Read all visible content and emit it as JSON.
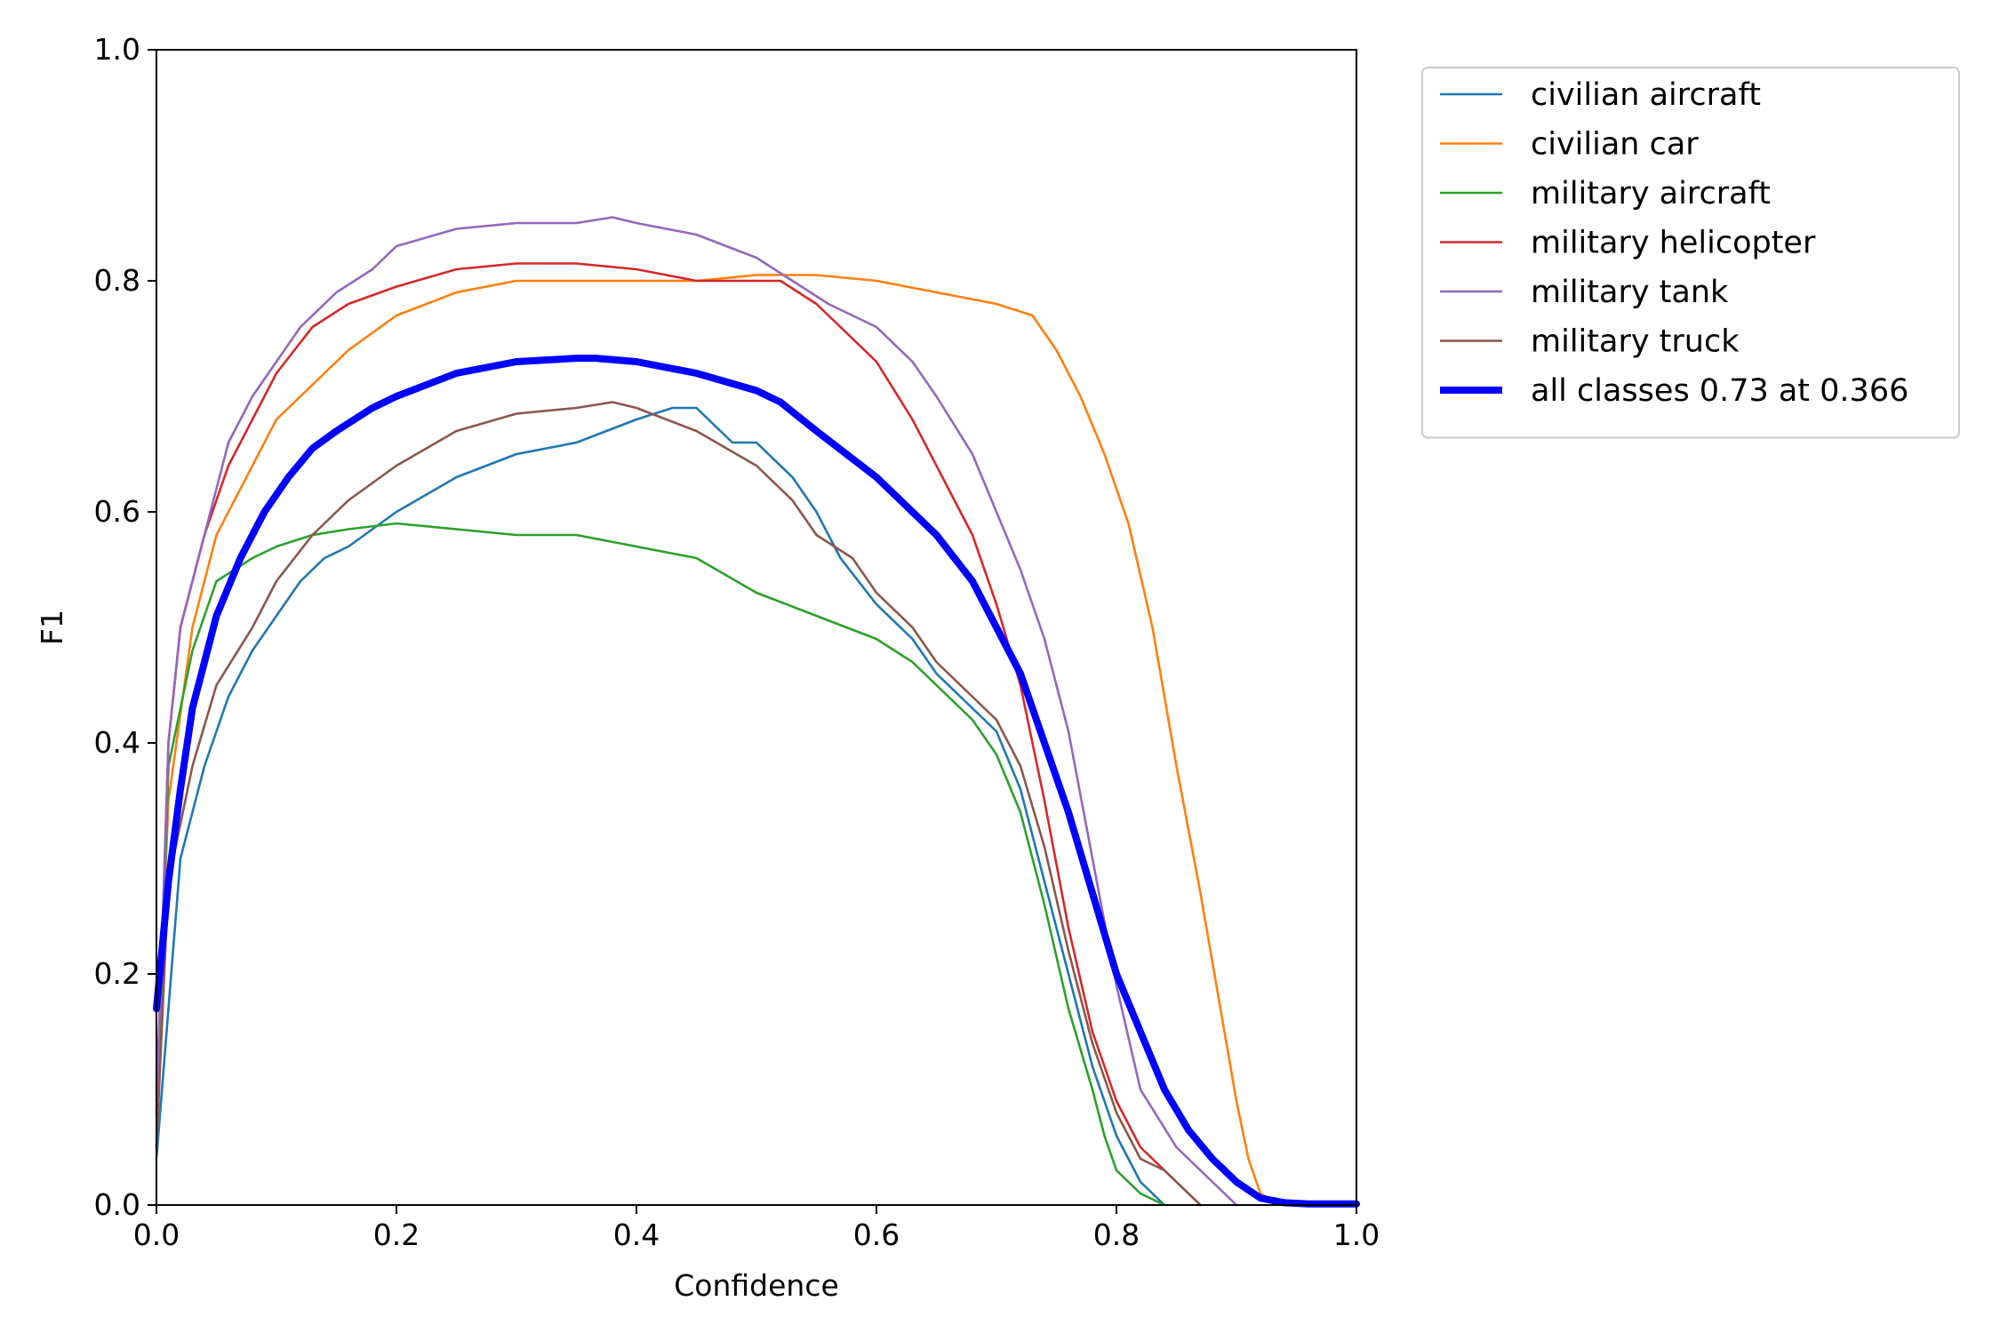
{
  "chart_data": {
    "type": "line",
    "xlabel": "Confidence",
    "ylabel": "F1",
    "xlim": [
      0,
      1
    ],
    "ylim": [
      0,
      1
    ],
    "xticks": [
      "0.0",
      "0.2",
      "0.4",
      "0.6",
      "0.8",
      "1.0"
    ],
    "yticks": [
      "0.0",
      "0.2",
      "0.4",
      "0.6",
      "0.8",
      "1.0"
    ],
    "grid": false,
    "legend_position": "outside-top-right",
    "series": [
      {
        "name": "civilian aircraft",
        "color": "#1f77b4",
        "x": [
          0,
          0.02,
          0.04,
          0.06,
          0.08,
          0.1,
          0.12,
          0.14,
          0.16,
          0.2,
          0.25,
          0.3,
          0.35,
          0.4,
          0.43,
          0.45,
          0.48,
          0.5,
          0.53,
          0.55,
          0.57,
          0.6,
          0.63,
          0.65,
          0.68,
          0.7,
          0.72,
          0.74,
          0.76,
          0.78,
          0.8,
          0.82,
          0.84
        ],
        "y": [
          0.04,
          0.3,
          0.38,
          0.44,
          0.48,
          0.51,
          0.54,
          0.56,
          0.57,
          0.6,
          0.63,
          0.65,
          0.66,
          0.68,
          0.69,
          0.69,
          0.66,
          0.66,
          0.63,
          0.6,
          0.56,
          0.52,
          0.49,
          0.46,
          0.43,
          0.41,
          0.36,
          0.28,
          0.2,
          0.12,
          0.06,
          0.02,
          0.0
        ]
      },
      {
        "name": "civilian car",
        "color": "#ff7f0e",
        "x": [
          0,
          0.01,
          0.03,
          0.05,
          0.08,
          0.1,
          0.13,
          0.16,
          0.2,
          0.25,
          0.3,
          0.35,
          0.4,
          0.45,
          0.5,
          0.55,
          0.6,
          0.65,
          0.7,
          0.73,
          0.75,
          0.77,
          0.79,
          0.81,
          0.83,
          0.85,
          0.87,
          0.88,
          0.89,
          0.9,
          0.91,
          0.92,
          0.93,
          0.95,
          1.0
        ],
        "y": [
          0.1,
          0.35,
          0.5,
          0.58,
          0.64,
          0.68,
          0.71,
          0.74,
          0.77,
          0.79,
          0.8,
          0.8,
          0.8,
          0.8,
          0.805,
          0.805,
          0.8,
          0.79,
          0.78,
          0.77,
          0.74,
          0.7,
          0.65,
          0.59,
          0.5,
          0.38,
          0.27,
          0.21,
          0.15,
          0.09,
          0.04,
          0.01,
          0.004,
          0.002,
          0.002
        ]
      },
      {
        "name": "military aircraft",
        "color": "#2ca02c",
        "x": [
          0,
          0.01,
          0.03,
          0.05,
          0.08,
          0.1,
          0.13,
          0.16,
          0.2,
          0.25,
          0.3,
          0.35,
          0.4,
          0.45,
          0.5,
          0.55,
          0.6,
          0.63,
          0.65,
          0.68,
          0.7,
          0.72,
          0.74,
          0.76,
          0.78,
          0.79,
          0.8,
          0.82,
          0.84
        ],
        "y": [
          0.05,
          0.38,
          0.48,
          0.54,
          0.56,
          0.57,
          0.58,
          0.585,
          0.59,
          0.585,
          0.58,
          0.58,
          0.57,
          0.56,
          0.53,
          0.51,
          0.49,
          0.47,
          0.45,
          0.42,
          0.39,
          0.34,
          0.26,
          0.17,
          0.1,
          0.06,
          0.03,
          0.01,
          0.0
        ]
      },
      {
        "name": "military helicopter",
        "color": "#d62728",
        "x": [
          0,
          0.01,
          0.02,
          0.04,
          0.06,
          0.08,
          0.1,
          0.13,
          0.16,
          0.2,
          0.25,
          0.3,
          0.35,
          0.4,
          0.45,
          0.5,
          0.52,
          0.55,
          0.58,
          0.6,
          0.63,
          0.65,
          0.68,
          0.7,
          0.72,
          0.74,
          0.76,
          0.78,
          0.8,
          0.82,
          0.84,
          0.86,
          0.87
        ],
        "y": [
          0.08,
          0.4,
          0.5,
          0.58,
          0.64,
          0.68,
          0.72,
          0.76,
          0.78,
          0.795,
          0.81,
          0.815,
          0.815,
          0.81,
          0.8,
          0.8,
          0.8,
          0.78,
          0.75,
          0.73,
          0.68,
          0.64,
          0.58,
          0.52,
          0.45,
          0.35,
          0.24,
          0.15,
          0.09,
          0.05,
          0.03,
          0.01,
          0.0
        ]
      },
      {
        "name": "military tank",
        "color": "#9467bd",
        "x": [
          0,
          0.01,
          0.02,
          0.04,
          0.06,
          0.08,
          0.1,
          0.12,
          0.15,
          0.18,
          0.2,
          0.25,
          0.3,
          0.35,
          0.38,
          0.4,
          0.45,
          0.5,
          0.53,
          0.56,
          0.6,
          0.63,
          0.65,
          0.68,
          0.7,
          0.72,
          0.74,
          0.76,
          0.78,
          0.8,
          0.82,
          0.85,
          0.88,
          0.9
        ],
        "y": [
          0.08,
          0.4,
          0.5,
          0.58,
          0.66,
          0.7,
          0.73,
          0.76,
          0.79,
          0.81,
          0.83,
          0.845,
          0.85,
          0.85,
          0.855,
          0.85,
          0.84,
          0.82,
          0.8,
          0.78,
          0.76,
          0.73,
          0.7,
          0.65,
          0.6,
          0.55,
          0.49,
          0.41,
          0.3,
          0.19,
          0.1,
          0.05,
          0.02,
          0.0
        ]
      },
      {
        "name": "military truck",
        "color": "#8c564b",
        "x": [
          0,
          0.01,
          0.03,
          0.05,
          0.08,
          0.1,
          0.13,
          0.16,
          0.2,
          0.25,
          0.3,
          0.35,
          0.38,
          0.4,
          0.45,
          0.5,
          0.53,
          0.55,
          0.58,
          0.6,
          0.63,
          0.65,
          0.68,
          0.7,
          0.72,
          0.74,
          0.76,
          0.78,
          0.8,
          0.82,
          0.84,
          0.86,
          0.87
        ],
        "y": [
          0.05,
          0.28,
          0.38,
          0.45,
          0.5,
          0.54,
          0.58,
          0.61,
          0.64,
          0.67,
          0.685,
          0.69,
          0.695,
          0.69,
          0.67,
          0.64,
          0.61,
          0.58,
          0.56,
          0.53,
          0.5,
          0.47,
          0.44,
          0.42,
          0.38,
          0.31,
          0.22,
          0.14,
          0.08,
          0.04,
          0.03,
          0.01,
          0.0
        ]
      },
      {
        "name": "all classes 0.73 at 0.366",
        "color": "#0000ff",
        "thick": true,
        "x": [
          0,
          0.01,
          0.02,
          0.03,
          0.05,
          0.07,
          0.09,
          0.11,
          0.13,
          0.15,
          0.18,
          0.2,
          0.25,
          0.3,
          0.35,
          0.366,
          0.4,
          0.45,
          0.5,
          0.52,
          0.55,
          0.6,
          0.65,
          0.68,
          0.7,
          0.72,
          0.74,
          0.76,
          0.78,
          0.8,
          0.82,
          0.84,
          0.86,
          0.88,
          0.9,
          0.92,
          0.94,
          0.96,
          1.0
        ],
        "y": [
          0.17,
          0.28,
          0.36,
          0.43,
          0.51,
          0.56,
          0.6,
          0.63,
          0.655,
          0.67,
          0.69,
          0.7,
          0.72,
          0.73,
          0.733,
          0.733,
          0.73,
          0.72,
          0.705,
          0.695,
          0.67,
          0.63,
          0.58,
          0.54,
          0.5,
          0.46,
          0.4,
          0.34,
          0.27,
          0.2,
          0.15,
          0.1,
          0.065,
          0.04,
          0.02,
          0.006,
          0.002,
          0.001,
          0.001
        ]
      }
    ]
  }
}
